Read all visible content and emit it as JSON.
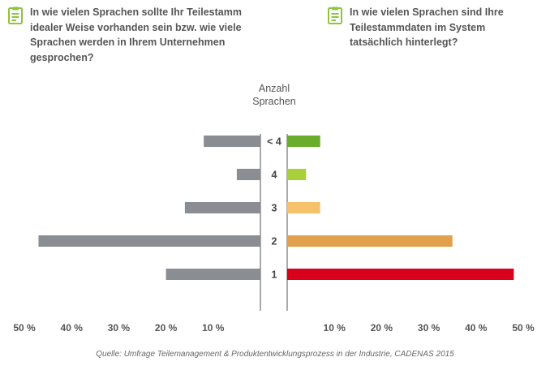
{
  "questions": {
    "left": "In wie vielen Sprachen sollte Ihr Teilestamm idealer Weise vorhanden sein bzw. wie viele Sprachen werden in Ihrem Unternehmen gesprochen?",
    "right": "In wie vielen Sprachen sind Ihre Teilestammdaten im System tatsächlich hinterlegt?",
    "icon": "checklist-icon",
    "icon_color": "#8cc63f"
  },
  "chart_data": {
    "type": "bar",
    "orientation": "horizontal-butterfly",
    "category_axis_title": [
      "Anzahl",
      "Sprachen"
    ],
    "categories": [
      "< 4",
      "4",
      "3",
      "2",
      "1"
    ],
    "series": [
      {
        "side": "left",
        "values": [
          12,
          5,
          16,
          47,
          20
        ],
        "colors": [
          "#8a8d91",
          "#8a8d91",
          "#8a8d91",
          "#8a8d91",
          "#8a8d91"
        ]
      },
      {
        "side": "right",
        "values": [
          7,
          4,
          7,
          35,
          48
        ],
        "colors": [
          "#6aad2a",
          "#a9cf3b",
          "#f5c26b",
          "#e0a04c",
          "#d9001b"
        ]
      }
    ],
    "xlim": [
      0,
      50
    ],
    "left_ticks": [
      "50 %",
      "40 %",
      "30 %",
      "20 %",
      "10 %"
    ],
    "left_tick_values": [
      50,
      40,
      30,
      20,
      10
    ],
    "right_ticks": [
      "10 %",
      "20 %",
      "30 %",
      "40 %",
      "50 %"
    ],
    "right_tick_values": [
      10,
      20,
      30,
      40,
      50
    ]
  },
  "source": "Quelle: Umfrage Teilemanagement & Produktentwicklungsprozess in der Industrie, CADENAS 2015"
}
